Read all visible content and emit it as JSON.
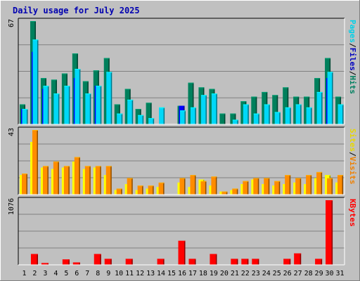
{
  "chart_data": {
    "type": "bar",
    "title": "Daily usage for July 2025",
    "categories": [
      "1",
      "2",
      "3",
      "4",
      "5",
      "6",
      "7",
      "8",
      "9",
      "10",
      "11",
      "12",
      "13",
      "14",
      "15",
      "16",
      "17",
      "18",
      "19",
      "20",
      "21",
      "22",
      "23",
      "24",
      "25",
      "26",
      "27",
      "28",
      "29",
      "30",
      "31"
    ],
    "weekend_days": [
      "5",
      "6",
      "12",
      "13",
      "19",
      "20",
      "26",
      "27"
    ],
    "panels": [
      {
        "name": "hits-panel",
        "ymax": 67,
        "ymax_label": "67",
        "right_label_parts": [
          {
            "text": "Pages",
            "color": "#00d0e8"
          },
          {
            "text": "/",
            "color": "#000000"
          },
          {
            "text": "Files",
            "color": "#0000c0"
          },
          {
            "text": "/",
            "color": "#000000"
          },
          {
            "text": "Hits",
            "color": "#008060"
          }
        ],
        "series": [
          {
            "name": "Hits",
            "color": "#00805c",
            "values": [
              13,
              67,
              30,
              29,
              33,
              46,
              28,
              35,
              43,
              13,
              23,
              10,
              14,
              0,
              0,
              12,
              27,
              24,
              23,
              7,
              7,
              15,
              18,
              21,
              19,
              24,
              18,
              18,
              30,
              43,
              18
            ]
          },
          {
            "name": "Files",
            "color": "#0000ff",
            "values": [
              10,
              47,
              23,
              0,
              0,
              30,
              0,
              25,
              0,
              0,
              0,
              0,
              0,
              0,
              0,
              12,
              0,
              0,
              0,
              0,
              0,
              0,
              0,
              0,
              0,
              0,
              0,
              0,
              0,
              30,
              0
            ]
          },
          {
            "name": "Pages",
            "color": "#00d8f8",
            "values": [
              10,
              55,
              25,
              20,
              25,
              36,
              20,
              25,
              34,
              7,
              16,
              6,
              4,
              11,
              0,
              9,
              11,
              19,
              20,
              0,
              3,
              13,
              7,
              13,
              8,
              11,
              13,
              11,
              21,
              34,
              13
            ]
          }
        ]
      },
      {
        "name": "visits-panel",
        "ymax": 43,
        "ymax_label": "43",
        "right_label_parts": [
          {
            "text": "Sites",
            "color": "#e8d800"
          },
          {
            "text": "/",
            "color": "#000000"
          },
          {
            "text": "Visits",
            "color": "#f08000"
          }
        ],
        "series": [
          {
            "name": "Sites",
            "color": "#ffff00",
            "values": [
              13,
              35,
              18,
              17,
              18,
              22,
              17,
              18,
              13,
              3,
              7,
              3,
              4,
              5,
              0,
              8,
              5,
              10,
              6,
              2,
              3,
              7,
              10,
              7,
              6,
              7,
              8,
              7,
              11,
              13,
              8
            ]
          },
          {
            "name": "Visits",
            "color": "#ff8c00",
            "values": [
              14,
              43,
              19,
              22,
              19,
              25,
              19,
              19,
              19,
              4,
              11,
              6,
              6,
              8,
              0,
              11,
              13,
              9,
              12,
              2,
              4,
              9,
              11,
              11,
              9,
              13,
              11,
              13,
              15,
              11,
              13
            ]
          }
        ]
      },
      {
        "name": "kbytes-panel",
        "ymax": 1076,
        "ymax_label": "1076",
        "right_label_parts": [
          {
            "text": "KBytes",
            "color": "#ff0000"
          }
        ],
        "series": [
          {
            "name": "KBytes",
            "color": "#ff0000",
            "values": [
              0,
              180,
              30,
              0,
              90,
              40,
              0,
              180,
              100,
              0,
              100,
              0,
              0,
              100,
              0,
              400,
              100,
              0,
              180,
              0,
              100,
              100,
              100,
              0,
              0,
              100,
              190,
              0,
              100,
              1076,
              0
            ]
          }
        ]
      }
    ]
  }
}
